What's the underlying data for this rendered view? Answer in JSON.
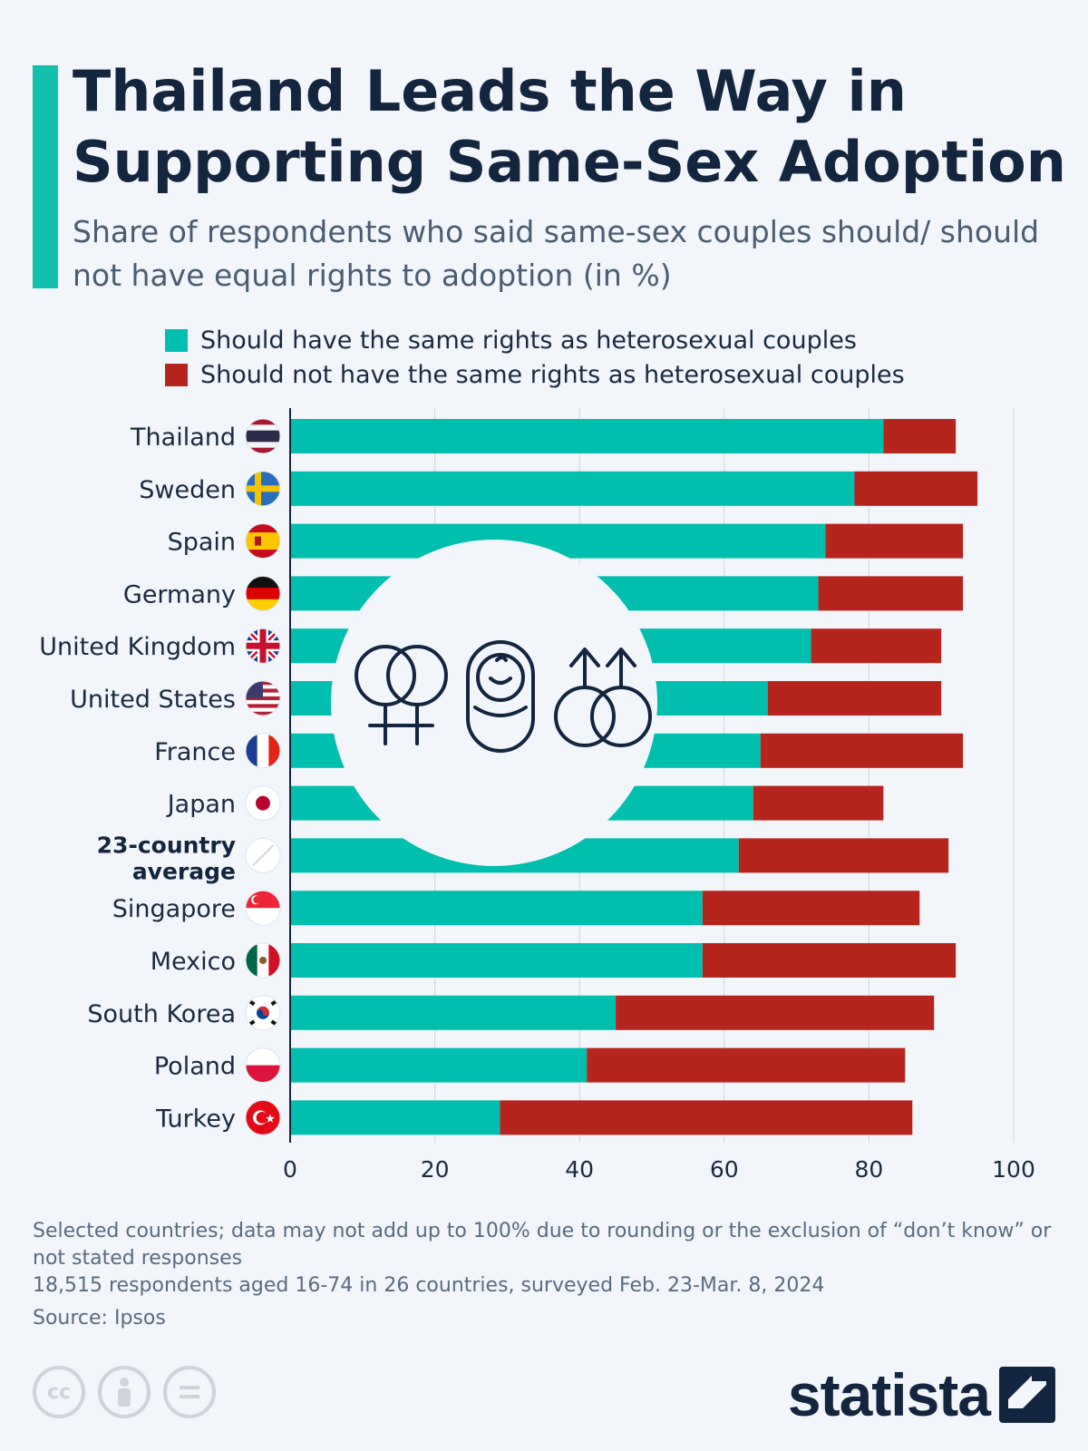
{
  "title": "Thailand Leads the Way in Supporting Same-Sex Adoption",
  "subtitle": "Share of respondents who said same-sex couples should/ should not have equal rights to adoption (in %)",
  "colors": {
    "accent": "#12c0ad",
    "should": "#00bfae",
    "should_not": "#b6251d"
  },
  "legend": {
    "should": "Should have the same rights as heterosexual couples",
    "should_not": "Should not have the same rights as heterosexual couples"
  },
  "chart_data": {
    "type": "bar",
    "orientation": "horizontal",
    "stacked": true,
    "categories": [
      "Thailand",
      "Sweden",
      "Spain",
      "Germany",
      "United Kingdom",
      "United States",
      "France",
      "Japan",
      "23-country average",
      "Singapore",
      "Mexico",
      "South Korea",
      "Poland",
      "Turkey"
    ],
    "series": [
      {
        "name": "Should have the same rights as heterosexual couples",
        "values": [
          82,
          78,
          74,
          73,
          72,
          66,
          65,
          64,
          62,
          57,
          57,
          45,
          41,
          29
        ]
      },
      {
        "name": "Should not have the same rights as heterosexual couples",
        "values": [
          10,
          17,
          19,
          20,
          18,
          24,
          28,
          18,
          29,
          30,
          35,
          44,
          44,
          57
        ]
      }
    ],
    "xlim": [
      0,
      100
    ],
    "xticks": [
      "0",
      "20",
      "40",
      "60",
      "80",
      "100"
    ],
    "highlighted_category": "23-country average",
    "flags": [
      "thailand-flag-icon",
      "sweden-flag-icon",
      "spain-flag-icon",
      "germany-flag-icon",
      "uk-flag-icon",
      "us-flag-icon",
      "france-flag-icon",
      "japan-flag-icon",
      "average-slash-icon",
      "singapore-flag-icon",
      "mexico-flag-icon",
      "south-korea-flag-icon",
      "poland-flag-icon",
      "turkey-flag-icon"
    ],
    "grid": true,
    "xlabel": "",
    "ylabel": ""
  },
  "footnote": {
    "note": "Selected countries; data may not add up to 100% due to rounding or the exclusion of “don’t know” or not stated responses",
    "sample": "18,515 respondents aged 16-74 in 26 countries, surveyed Feb. 23-Mar. 8, 2024",
    "source": "Source: Ipsos"
  },
  "license_icons": [
    "cc-icon",
    "attribution-icon",
    "no-derivatives-icon"
  ],
  "brand": {
    "name": "statista"
  }
}
